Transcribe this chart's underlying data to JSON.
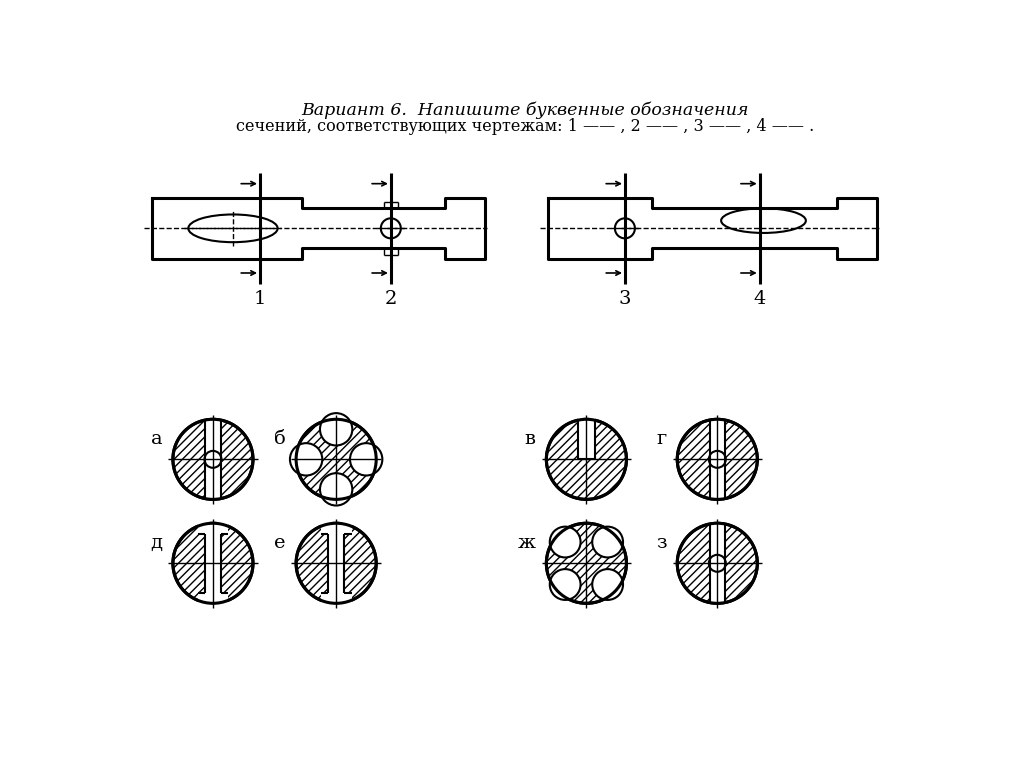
{
  "bg_color": "#ffffff",
  "title_line1": "Вариант 6.  Напишите буквенные обозначения",
  "title_line2": "сечений, соответствующих чертежам: 1 —— , 2 —— , 3 —— , 4 —— .",
  "section_labels": [
    "а",
    "б",
    "в",
    "г",
    "д",
    "е",
    "ж",
    "з"
  ]
}
